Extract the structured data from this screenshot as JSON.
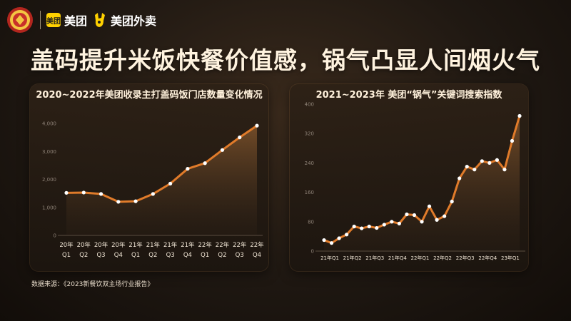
{
  "header": {
    "brand1": "美团",
    "brand1_icon": "美团",
    "brand2": "美团外卖"
  },
  "headline": "盖码提升米饭快餐价值感，锅气凸显人间烟火气",
  "source": "数据来源：《2023新餐饮双主场行业报告》",
  "colors": {
    "line": "#e07b2a",
    "point": "#ffffff",
    "brand_yellow": "#ffd100"
  },
  "chart_data": [
    {
      "type": "area",
      "title": "2020~2022年美团收录主打盖码饭门店数量变化情况",
      "categories": [
        "20年 Q1",
        "20年 Q2",
        "20年 Q3",
        "20年 Q4",
        "21年 Q1",
        "21年 Q2",
        "21年 Q3",
        "21年 Q4",
        "22年 Q1",
        "22年 Q2",
        "22年 Q3",
        "22年 Q4"
      ],
      "x_tick_top": [
        "20年",
        "20年",
        "20年",
        "20年",
        "21年",
        "21年",
        "21年",
        "21年",
        "22年",
        "22年",
        "22年",
        "22年"
      ],
      "x_tick_bottom": [
        "Q1",
        "Q2",
        "Q3",
        "Q4",
        "Q1",
        "Q2",
        "Q3",
        "Q4",
        "Q1",
        "Q2",
        "Q3",
        "Q4"
      ],
      "values": [
        1520,
        1530,
        1480,
        1200,
        1220,
        1480,
        1850,
        2380,
        2580,
        3050,
        3500,
        3920
      ],
      "ylim": [
        0,
        4000
      ],
      "yticks": [
        0,
        1000,
        2000,
        3000,
        4000
      ],
      "ytick_labels": [
        "0",
        "1,000",
        "2,000",
        "3,000",
        "4,000"
      ],
      "grid": false
    },
    {
      "type": "area",
      "title": "2021~2023年 美团“锅气”关键词搜索指数",
      "x_tick_labels": [
        "21年Q1",
        "21年Q2",
        "21年Q3",
        "21年Q4",
        "22年Q1",
        "22年Q2",
        "22年Q3",
        "22年Q4",
        "23年Q1"
      ],
      "values": [
        30,
        22,
        35,
        45,
        67,
        62,
        67,
        63,
        72,
        80,
        75,
        100,
        98,
        80,
        122,
        85,
        95,
        135,
        198,
        230,
        222,
        245,
        240,
        248,
        222,
        300,
        368
      ],
      "ylim": [
        0,
        400
      ],
      "yticks": [
        0,
        80,
        160,
        240,
        320,
        400
      ],
      "grid": false
    }
  ]
}
